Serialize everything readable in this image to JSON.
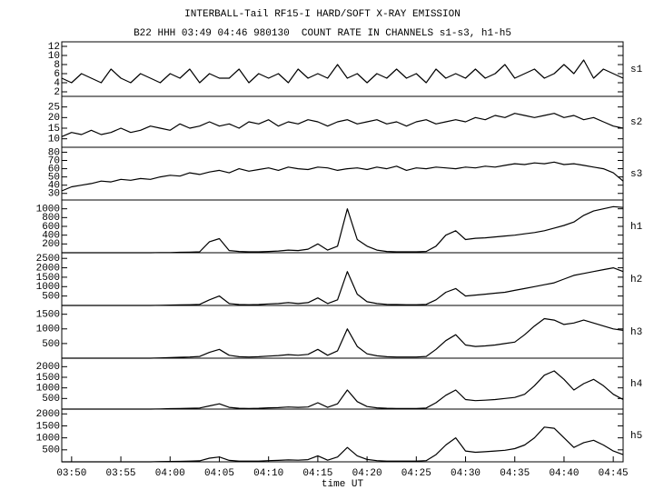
{
  "chart_data": [
    {
      "type": "line",
      "title": "INTERBALL-Tail RF15-I HARD/SOFT X-RAY EMISSION",
      "subtitle": "B22 HHH 03:49 04:46 980130  COUNT RATE IN CHANNELS s1-s3, h1-h5",
      "label": "s1",
      "color": "#000000",
      "xlim": [
        229,
        286
      ],
      "ylim": [
        1,
        13
      ],
      "yticks": [
        2,
        4,
        6,
        8,
        10,
        12
      ],
      "x": [
        229,
        230,
        231,
        232,
        233,
        234,
        235,
        236,
        237,
        238,
        239,
        240,
        241,
        242,
        243,
        244,
        245,
        246,
        247,
        248,
        249,
        250,
        251,
        252,
        253,
        254,
        255,
        256,
        257,
        258,
        259,
        260,
        261,
        262,
        263,
        264,
        265,
        266,
        267,
        268,
        269,
        270,
        271,
        272,
        273,
        274,
        275,
        276,
        277,
        278,
        279,
        280,
        281,
        282,
        283,
        284,
        285,
        286
      ],
      "values": [
        5,
        4,
        6,
        5,
        4,
        7,
        5,
        4,
        6,
        5,
        4,
        6,
        5,
        7,
        4,
        6,
        5,
        5,
        7,
        4,
        6,
        5,
        6,
        4,
        7,
        5,
        6,
        5,
        8,
        5,
        6,
        4,
        6,
        5,
        7,
        5,
        6,
        4,
        7,
        5,
        6,
        5,
        7,
        5,
        6,
        8,
        5,
        6,
        7,
        5,
        6,
        8,
        6,
        9,
        5,
        7,
        6,
        5
      ]
    },
    {
      "type": "line",
      "label": "s2",
      "color": "#000000",
      "xlim": [
        229,
        286
      ],
      "ylim": [
        6,
        30
      ],
      "yticks": [
        10,
        15,
        20,
        25
      ],
      "x": [
        229,
        230,
        231,
        232,
        233,
        234,
        235,
        236,
        237,
        238,
        239,
        240,
        241,
        242,
        243,
        244,
        245,
        246,
        247,
        248,
        249,
        250,
        251,
        252,
        253,
        254,
        255,
        256,
        257,
        258,
        259,
        260,
        261,
        262,
        263,
        264,
        265,
        266,
        267,
        268,
        269,
        270,
        271,
        272,
        273,
        274,
        275,
        276,
        277,
        278,
        279,
        280,
        281,
        282,
        283,
        284,
        285,
        286
      ],
      "values": [
        11,
        13,
        12,
        14,
        12,
        13,
        15,
        13,
        14,
        16,
        15,
        14,
        17,
        15,
        16,
        18,
        16,
        17,
        15,
        18,
        17,
        19,
        16,
        18,
        17,
        19,
        18,
        16,
        18,
        19,
        17,
        18,
        19,
        17,
        18,
        16,
        18,
        19,
        17,
        18,
        19,
        18,
        20,
        19,
        21,
        20,
        22,
        21,
        20,
        21,
        22,
        20,
        21,
        19,
        20,
        18,
        16,
        15
      ]
    },
    {
      "type": "line",
      "label": "s3",
      "color": "#000000",
      "xlim": [
        229,
        286
      ],
      "ylim": [
        22,
        86
      ],
      "yticks": [
        30,
        40,
        50,
        60,
        70,
        80
      ],
      "x": [
        229,
        230,
        231,
        232,
        233,
        234,
        235,
        236,
        237,
        238,
        239,
        240,
        241,
        242,
        243,
        244,
        245,
        246,
        247,
        248,
        249,
        250,
        251,
        252,
        253,
        254,
        255,
        256,
        257,
        258,
        259,
        260,
        261,
        262,
        263,
        264,
        265,
        266,
        267,
        268,
        269,
        270,
        271,
        272,
        273,
        274,
        275,
        276,
        277,
        278,
        279,
        280,
        281,
        282,
        283,
        284,
        285,
        286
      ],
      "values": [
        33,
        38,
        40,
        42,
        45,
        44,
        47,
        46,
        48,
        47,
        50,
        52,
        51,
        55,
        53,
        56,
        58,
        55,
        60,
        57,
        59,
        61,
        58,
        62,
        60,
        59,
        62,
        61,
        58,
        60,
        61,
        59,
        62,
        60,
        63,
        58,
        61,
        60,
        62,
        61,
        60,
        62,
        61,
        63,
        62,
        64,
        66,
        65,
        67,
        66,
        68,
        65,
        66,
        64,
        62,
        60,
        55,
        45
      ]
    },
    {
      "type": "line",
      "label": "h1",
      "color": "#000000",
      "xlim": [
        229,
        286
      ],
      "ylim": [
        0,
        1200
      ],
      "yticks": [
        200,
        400,
        600,
        800,
        1000
      ],
      "x": [
        229,
        230,
        231,
        232,
        233,
        234,
        235,
        236,
        237,
        238,
        239,
        240,
        241,
        242,
        243,
        244,
        245,
        246,
        247,
        248,
        249,
        250,
        251,
        252,
        253,
        254,
        255,
        256,
        257,
        258,
        259,
        260,
        261,
        262,
        263,
        264,
        265,
        266,
        267,
        268,
        269,
        270,
        271,
        272,
        273,
        274,
        275,
        276,
        277,
        278,
        279,
        280,
        281,
        282,
        283,
        284,
        285,
        286
      ],
      "values": [
        0,
        0,
        0,
        0,
        0,
        0,
        0,
        0,
        0,
        0,
        5,
        5,
        10,
        15,
        20,
        250,
        320,
        50,
        30,
        20,
        20,
        30,
        40,
        60,
        50,
        80,
        200,
        60,
        150,
        1000,
        300,
        150,
        60,
        30,
        20,
        20,
        20,
        30,
        150,
        400,
        500,
        300,
        330,
        340,
        360,
        380,
        400,
        430,
        460,
        500,
        560,
        620,
        700,
        850,
        950,
        1000,
        1050,
        1030
      ]
    },
    {
      "type": "line",
      "label": "h2",
      "color": "#000000",
      "xlim": [
        229,
        286
      ],
      "ylim": [
        0,
        2800
      ],
      "yticks": [
        500,
        1000,
        1500,
        2000,
        2500
      ],
      "x": [
        229,
        230,
        231,
        232,
        233,
        234,
        235,
        236,
        237,
        238,
        239,
        240,
        241,
        242,
        243,
        244,
        245,
        246,
        247,
        248,
        249,
        250,
        251,
        252,
        253,
        254,
        255,
        256,
        257,
        258,
        259,
        260,
        261,
        262,
        263,
        264,
        265,
        266,
        267,
        268,
        269,
        270,
        271,
        272,
        273,
        274,
        275,
        276,
        277,
        278,
        279,
        280,
        281,
        282,
        283,
        284,
        285,
        286
      ],
      "values": [
        0,
        0,
        0,
        0,
        0,
        0,
        0,
        0,
        0,
        0,
        10,
        20,
        30,
        40,
        60,
        300,
        500,
        100,
        50,
        40,
        50,
        80,
        100,
        150,
        100,
        150,
        400,
        100,
        300,
        1800,
        600,
        200,
        100,
        60,
        50,
        40,
        40,
        60,
        300,
        700,
        900,
        500,
        550,
        600,
        650,
        700,
        800,
        900,
        1000,
        1100,
        1200,
        1400,
        1600,
        1700,
        1800,
        1900,
        2000,
        1800
      ]
    },
    {
      "type": "line",
      "label": "h3",
      "color": "#000000",
      "xlim": [
        229,
        286
      ],
      "ylim": [
        0,
        1800
      ],
      "yticks": [
        500,
        1000,
        1500
      ],
      "x": [
        229,
        230,
        231,
        232,
        233,
        234,
        235,
        236,
        237,
        238,
        239,
        240,
        241,
        242,
        243,
        244,
        245,
        246,
        247,
        248,
        249,
        250,
        251,
        252,
        253,
        254,
        255,
        256,
        257,
        258,
        259,
        260,
        261,
        262,
        263,
        264,
        265,
        266,
        267,
        268,
        269,
        270,
        271,
        272,
        273,
        274,
        275,
        276,
        277,
        278,
        279,
        280,
        281,
        282,
        283,
        284,
        285,
        286
      ],
      "values": [
        0,
        0,
        0,
        0,
        0,
        0,
        0,
        0,
        0,
        0,
        10,
        20,
        30,
        40,
        60,
        200,
        300,
        100,
        50,
        40,
        50,
        70,
        90,
        120,
        100,
        130,
        300,
        100,
        250,
        1000,
        400,
        150,
        80,
        50,
        40,
        40,
        40,
        60,
        300,
        600,
        800,
        450,
        400,
        420,
        450,
        500,
        550,
        800,
        1100,
        1350,
        1300,
        1150,
        1200,
        1300,
        1200,
        1100,
        1000,
        950
      ]
    },
    {
      "type": "line",
      "label": "h4",
      "color": "#000000",
      "xlim": [
        229,
        286
      ],
      "ylim": [
        0,
        2400
      ],
      "yticks": [
        500,
        1000,
        1500,
        2000
      ],
      "x": [
        229,
        230,
        231,
        232,
        233,
        234,
        235,
        236,
        237,
        238,
        239,
        240,
        241,
        242,
        243,
        244,
        245,
        246,
        247,
        248,
        249,
        250,
        251,
        252,
        253,
        254,
        255,
        256,
        257,
        258,
        259,
        260,
        261,
        262,
        263,
        264,
        265,
        266,
        267,
        268,
        269,
        270,
        271,
        272,
        273,
        274,
        275,
        276,
        277,
        278,
        279,
        280,
        281,
        282,
        283,
        284,
        285,
        286
      ],
      "values": [
        0,
        0,
        0,
        0,
        0,
        0,
        0,
        0,
        0,
        0,
        10,
        20,
        30,
        40,
        50,
        150,
        250,
        80,
        40,
        30,
        40,
        60,
        70,
        100,
        80,
        100,
        300,
        80,
        250,
        900,
        350,
        120,
        60,
        40,
        30,
        30,
        30,
        50,
        300,
        650,
        900,
        450,
        400,
        420,
        450,
        500,
        550,
        700,
        1100,
        1600,
        1800,
        1400,
        900,
        1200,
        1400,
        1100,
        700,
        450
      ]
    },
    {
      "type": "line",
      "label": "h5",
      "color": "#000000",
      "xlabel": "time UT",
      "xlim": [
        229,
        286
      ],
      "ylim": [
        0,
        2200
      ],
      "yticks": [
        500,
        1000,
        1500,
        2000
      ],
      "xticks": [
        {
          "value": 230,
          "label": "03:50"
        },
        {
          "value": 235,
          "label": "03:55"
        },
        {
          "value": 240,
          "label": "04:00"
        },
        {
          "value": 245,
          "label": "04:05"
        },
        {
          "value": 250,
          "label": "04:10"
        },
        {
          "value": 255,
          "label": "04:15"
        },
        {
          "value": 260,
          "label": "04:20"
        },
        {
          "value": 265,
          "label": "04:25"
        },
        {
          "value": 270,
          "label": "04:30"
        },
        {
          "value": 275,
          "label": "04:35"
        },
        {
          "value": 280,
          "label": "04:40"
        },
        {
          "value": 285,
          "label": "04:45"
        }
      ],
      "x": [
        229,
        230,
        231,
        232,
        233,
        234,
        235,
        236,
        237,
        238,
        239,
        240,
        241,
        242,
        243,
        244,
        245,
        246,
        247,
        248,
        249,
        250,
        251,
        252,
        253,
        254,
        255,
        256,
        257,
        258,
        259,
        260,
        261,
        262,
        263,
        264,
        265,
        266,
        267,
        268,
        269,
        270,
        271,
        272,
        273,
        274,
        275,
        276,
        277,
        278,
        279,
        280,
        281,
        282,
        283,
        284,
        285,
        286
      ],
      "values": [
        0,
        0,
        0,
        0,
        0,
        0,
        0,
        0,
        0,
        0,
        10,
        15,
        20,
        30,
        40,
        150,
        200,
        60,
        30,
        30,
        30,
        50,
        60,
        80,
        70,
        90,
        250,
        70,
        200,
        600,
        250,
        100,
        50,
        30,
        30,
        30,
        30,
        50,
        300,
        700,
        1000,
        450,
        400,
        420,
        450,
        480,
        550,
        700,
        1000,
        1450,
        1400,
        1000,
        600,
        800,
        900,
        700,
        450,
        300
      ]
    }
  ]
}
